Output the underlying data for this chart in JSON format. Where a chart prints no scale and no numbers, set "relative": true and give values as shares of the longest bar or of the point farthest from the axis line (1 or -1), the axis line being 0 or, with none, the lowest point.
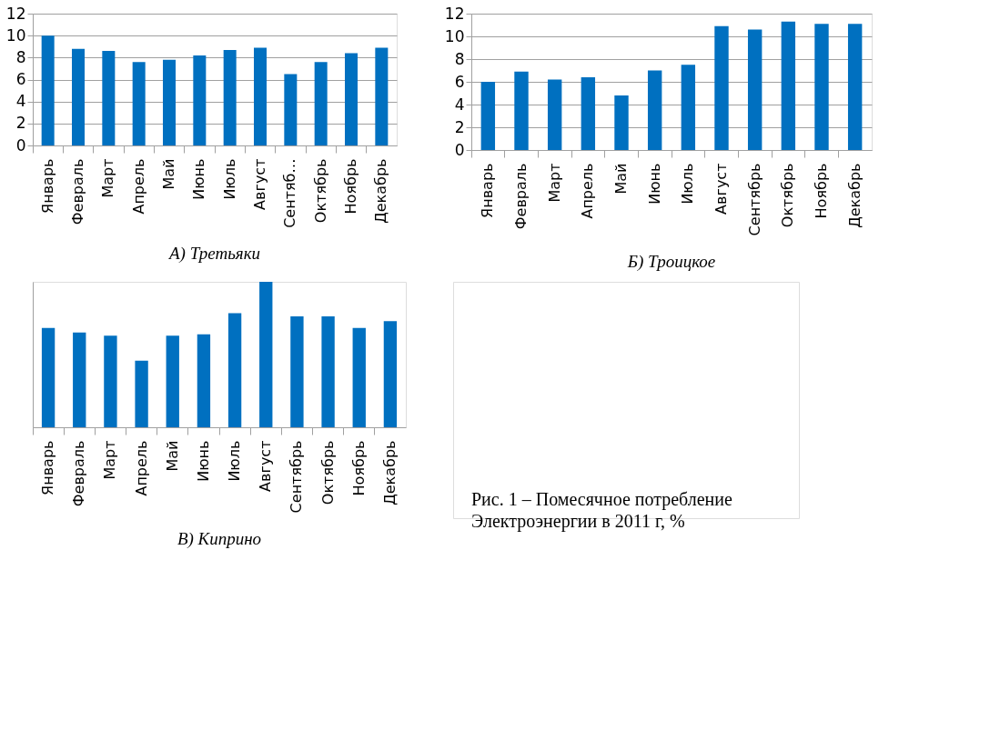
{
  "chart_data": [
    {
      "type": "bar",
      "title": "А) Третьяки",
      "categories": [
        "Январь",
        "Февраль",
        "Март",
        "Апрель",
        "Май",
        "Июнь",
        "Июль",
        "Август",
        "Сентяб…",
        "Октябрь",
        "Ноябрь",
        "Декабрь"
      ],
      "values": [
        10.0,
        8.8,
        8.6,
        7.6,
        7.8,
        8.2,
        8.7,
        8.9,
        6.5,
        7.6,
        8.4,
        8.9
      ],
      "color": "#0070c0",
      "ylim": [
        0,
        12
      ],
      "yticks": [
        0,
        2,
        4,
        6,
        8,
        10,
        12
      ],
      "grid": "y"
    },
    {
      "type": "bar",
      "title": "Б) Троицкое",
      "categories": [
        "Январь",
        "Февраль",
        "Март",
        "Апрель",
        "Май",
        "Июнь",
        "Июль",
        "Август",
        "Сентябрь",
        "Октябрь",
        "Ноябрь",
        "Декабрь"
      ],
      "values": [
        6.0,
        6.9,
        6.2,
        6.4,
        4.8,
        7.0,
        7.5,
        10.9,
        10.6,
        11.3,
        11.1,
        11.1
      ],
      "color": "#0070c0",
      "ylim": [
        0,
        12
      ],
      "yticks": [
        0,
        2,
        4,
        6,
        8,
        10,
        12
      ],
      "grid": "y"
    },
    {
      "type": "bar",
      "title": "В) Киприно",
      "categories": [
        "Январь",
        "Февраль",
        "Март",
        "Апрель",
        "Май",
        "Июнь",
        "Июль",
        "Август",
        "Сентябрь",
        "Октябрь",
        "Ноябрь",
        "Декабрь"
      ],
      "values": [
        0.683,
        0.651,
        0.629,
        0.458,
        0.629,
        0.639,
        0.785,
        1,
        0.762,
        0.762,
        0.683,
        0.73
      ],
      "color": "#0070c0",
      "relative": true
    },
    {
      "type": "other",
      "annotations": [
        "Рис. 1 – Помесячное потребление Электроэнергии в 2011 г, %"
      ]
    }
  ]
}
